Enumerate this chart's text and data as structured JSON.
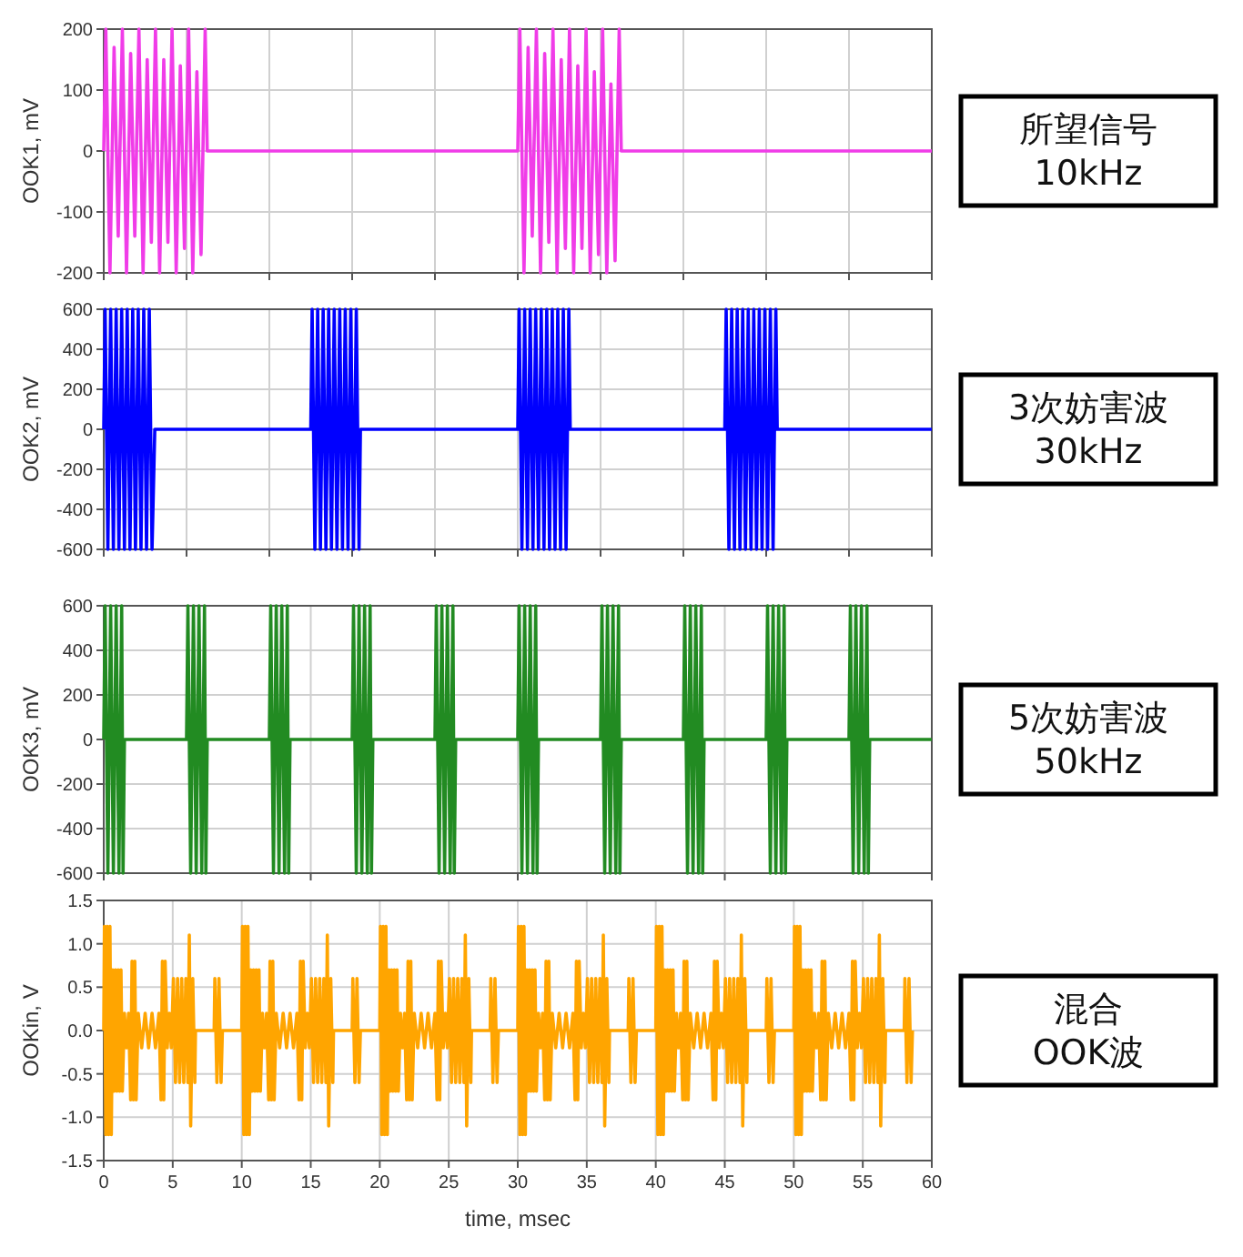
{
  "chart_data": [
    {
      "type": "line",
      "ylabel": "OOK1, mV",
      "annotations": [
        "所望信号",
        "10kHz"
      ],
      "xlim": [
        0,
        60
      ],
      "ylim": [
        -200,
        200
      ],
      "xticks": [
        {
          "value": 0,
          "label": null
        },
        {
          "value": 6,
          "label": null
        },
        {
          "value": 12,
          "label": null
        },
        {
          "value": 18,
          "label": null
        },
        {
          "value": 24,
          "label": null
        },
        {
          "value": 30,
          "label": null
        },
        {
          "value": 36,
          "label": null
        },
        {
          "value": 42,
          "label": null
        },
        {
          "value": 48,
          "label": null
        },
        {
          "value": 54,
          "label": null
        },
        {
          "value": 60,
          "label": null
        }
      ],
      "yticks": [
        -200,
        -100,
        0,
        100,
        200
      ],
      "grid": true,
      "tick_labels": "y",
      "series": [
        {
          "color": "#f03ce8",
          "x": [
            0,
            0.15,
            0.45,
            0.75,
            1.05,
            1.35,
            1.65,
            1.95,
            2.25,
            2.55,
            2.85,
            3.15,
            3.45,
            3.75,
            4.05,
            4.35,
            4.65,
            4.95,
            5.25,
            5.55,
            5.85,
            6.15,
            6.45,
            6.75,
            7.05,
            7.35,
            7.5,
            30,
            30.15,
            30.45,
            30.75,
            31.05,
            31.35,
            31.65,
            31.95,
            32.25,
            32.55,
            32.85,
            33.15,
            33.45,
            33.75,
            34.05,
            34.35,
            34.65,
            34.95,
            35.25,
            35.55,
            35.85,
            36.15,
            36.45,
            36.75,
            37.05,
            37.35,
            37.5,
            60
          ],
          "values": [
            0,
            200,
            -200,
            170,
            -140,
            200,
            -200,
            160,
            -140,
            200,
            -200,
            150,
            -150,
            200,
            -200,
            150,
            -150,
            200,
            -200,
            140,
            -160,
            200,
            -200,
            130,
            -170,
            200,
            0,
            0,
            200,
            -200,
            170,
            -140,
            200,
            -200,
            160,
            -150,
            200,
            -200,
            150,
            -160,
            200,
            -200,
            140,
            -160,
            200,
            -200,
            130,
            -170,
            200,
            -200,
            110,
            -180,
            200,
            0,
            0
          ]
        }
      ]
    },
    {
      "type": "line",
      "ylabel": "OOK2, mV",
      "annotations": [
        "3次妨害波",
        "30kHz"
      ],
      "xlim": [
        0,
        60
      ],
      "ylim": [
        -600,
        600
      ],
      "xticks": [
        {
          "value": 0,
          "label": null
        },
        {
          "value": 6,
          "label": null
        },
        {
          "value": 12,
          "label": null
        },
        {
          "value": 18,
          "label": null
        },
        {
          "value": 24,
          "label": null
        },
        {
          "value": 30,
          "label": null
        },
        {
          "value": 36,
          "label": null
        },
        {
          "value": 42,
          "label": null
        },
        {
          "value": 48,
          "label": null
        },
        {
          "value": 54,
          "label": null
        },
        {
          "value": 60,
          "label": null
        }
      ],
      "yticks": [
        -600,
        -400,
        -200,
        0,
        200,
        400,
        600
      ],
      "grid": true,
      "tick_labels": "y",
      "series": [
        {
          "color": "#0000ff",
          "x": [
            0,
            0.1,
            0.3,
            0.5,
            0.7,
            0.9,
            1.1,
            1.3,
            1.5,
            1.7,
            1.9,
            2.1,
            2.3,
            2.5,
            2.7,
            2.9,
            3.1,
            3.3,
            3.5,
            3.7,
            15,
            15.1,
            15.3,
            15.5,
            15.7,
            15.9,
            16.1,
            16.3,
            16.5,
            16.7,
            16.9,
            17.1,
            17.3,
            17.5,
            17.7,
            17.9,
            18.1,
            18.3,
            18.5,
            18.6,
            30,
            30.1,
            30.3,
            30.5,
            30.7,
            30.9,
            31.1,
            31.3,
            31.5,
            31.7,
            31.9,
            32.1,
            32.3,
            32.5,
            32.7,
            32.9,
            33.1,
            33.3,
            33.5,
            33.7,
            33.8,
            45,
            45.1,
            45.3,
            45.5,
            45.7,
            45.9,
            46.1,
            46.3,
            46.5,
            46.7,
            46.9,
            47.1,
            47.3,
            47.5,
            47.7,
            47.9,
            48.1,
            48.3,
            48.5,
            48.7,
            48.8,
            60
          ],
          "values": [
            0,
            600,
            -600,
            600,
            -600,
            600,
            -600,
            600,
            -600,
            600,
            -600,
            600,
            -600,
            600,
            -600,
            600,
            -600,
            600,
            -600,
            0,
            0,
            600,
            -600,
            600,
            -600,
            600,
            -600,
            600,
            -600,
            600,
            -600,
            600,
            -600,
            600,
            -600,
            600,
            -600,
            600,
            -600,
            0,
            0,
            600,
            -600,
            600,
            -600,
            600,
            -600,
            600,
            -600,
            600,
            -600,
            600,
            -600,
            600,
            -600,
            600,
            -600,
            600,
            -600,
            600,
            0,
            0,
            600,
            -600,
            600,
            -600,
            600,
            -600,
            600,
            -600,
            600,
            -600,
            600,
            -600,
            600,
            -600,
            600,
            -600,
            600,
            -600,
            600,
            0,
            0
          ]
        }
      ]
    },
    {
      "type": "line",
      "ylabel": "OOK3, mV",
      "annotations": [
        "5次妨害波",
        "50kHz"
      ],
      "xlim": [
        0,
        60
      ],
      "ylim": [
        -600,
        600
      ],
      "xticks": [
        {
          "value": 0,
          "label": null
        },
        {
          "value": 15,
          "label": null
        },
        {
          "value": 30,
          "label": null
        },
        {
          "value": 45,
          "label": null
        },
        {
          "value": 60,
          "label": null
        }
      ],
      "yticks": [
        -600,
        -400,
        -200,
        0,
        200,
        400,
        600
      ],
      "grid": true,
      "tick_labels": "y",
      "series": [
        {
          "color": "#228b22",
          "x": [
            0,
            0.1,
            0.3,
            0.5,
            0.7,
            0.9,
            1.1,
            1.3,
            1.4,
            1.5,
            6,
            6.1,
            6.3,
            6.5,
            6.7,
            6.9,
            7.1,
            7.3,
            7.4,
            7.5,
            12,
            12.1,
            12.3,
            12.5,
            12.7,
            12.9,
            13.1,
            13.3,
            13.4,
            13.5,
            18,
            18.1,
            18.3,
            18.5,
            18.7,
            18.9,
            19.1,
            19.3,
            19.4,
            19.5,
            24,
            24.1,
            24.3,
            24.5,
            24.7,
            24.9,
            25.1,
            25.3,
            25.4,
            25.5,
            30,
            30.1,
            30.3,
            30.5,
            30.7,
            30.9,
            31.1,
            31.3,
            31.4,
            31.5,
            36,
            36.1,
            36.3,
            36.5,
            36.7,
            36.9,
            37.1,
            37.3,
            37.4,
            37.5,
            42,
            42.1,
            42.3,
            42.5,
            42.7,
            42.9,
            43.1,
            43.3,
            43.4,
            43.5,
            48,
            48.1,
            48.3,
            48.5,
            48.7,
            48.9,
            49.1,
            49.3,
            49.4,
            49.5,
            54,
            54.1,
            54.3,
            54.5,
            54.7,
            54.9,
            55.1,
            55.3,
            55.4,
            55.5,
            60
          ],
          "values": [
            0,
            600,
            -600,
            600,
            -600,
            600,
            -600,
            600,
            -600,
            0,
            0,
            600,
            -600,
            600,
            -600,
            600,
            -600,
            600,
            -600,
            0,
            0,
            600,
            -600,
            600,
            -600,
            600,
            -600,
            600,
            -600,
            0,
            0,
            600,
            -600,
            600,
            -600,
            600,
            -600,
            600,
            -600,
            0,
            0,
            600,
            -600,
            600,
            -600,
            600,
            -600,
            600,
            -600,
            0,
            0,
            600,
            -600,
            600,
            -600,
            600,
            -600,
            600,
            -600,
            0,
            0,
            600,
            -600,
            600,
            -600,
            600,
            -600,
            600,
            -600,
            0,
            0,
            600,
            -600,
            600,
            -600,
            600,
            -600,
            600,
            -600,
            0,
            0,
            600,
            -600,
            600,
            -600,
            600,
            -600,
            600,
            -600,
            0,
            0,
            600,
            -600,
            600,
            -600,
            600,
            -600,
            600,
            -600,
            0,
            0
          ]
        }
      ]
    },
    {
      "type": "line",
      "ylabel": "OOKin, V",
      "xlabel": "time, msec",
      "annotations": [
        "混合",
        "OOK波"
      ],
      "xlim": [
        0,
        60
      ],
      "ylim": [
        -1.5,
        1.5
      ],
      "xticks": [
        0,
        5,
        10,
        15,
        20,
        25,
        30,
        35,
        40,
        45,
        50,
        55,
        60
      ],
      "yticks": [
        {
          "value": -1.5,
          "label": "-1.5"
        },
        {
          "value": -1,
          "label": "-1.0"
        },
        {
          "value": -0.5,
          "label": "-0.5"
        },
        {
          "value": 0,
          "label": "0.0"
        },
        {
          "value": 0.5,
          "label": "0.5"
        },
        {
          "value": 1,
          "label": "1.0"
        },
        {
          "value": 1.5,
          "label": "1.5"
        }
      ],
      "grid": true,
      "series": [
        {
          "color": "#ffa500",
          "x": [
            0,
            0.05,
            0.15,
            0.25,
            0.35,
            0.45,
            0.55,
            0.65,
            0.75,
            0.85,
            0.95,
            1.05,
            1.15,
            1.25,
            1.35,
            1.5,
            1.65,
            1.8,
            1.95,
            2.05,
            2.15,
            2.25,
            2.35,
            2.5,
            2.75,
            3,
            3.25,
            3.5,
            3.75,
            4,
            4.15,
            4.25,
            4.35,
            4.45,
            4.6,
            4.75,
            4.9,
            5.05,
            5.2,
            5.35,
            5.5,
            5.65,
            5.8,
            5.95,
            6.1,
            6.2,
            6.3,
            6.45,
            6.6,
            6.65,
            8,
            8.05,
            8.2,
            8.35,
            8.5,
            8.6,
            10,
            10.05,
            10.15,
            10.25,
            10.35,
            10.45,
            10.55,
            10.65,
            10.75,
            10.85,
            10.95,
            11.05,
            11.15,
            11.25,
            11.35,
            11.5,
            11.65,
            11.8,
            11.95,
            12.05,
            12.15,
            12.25,
            12.35,
            12.5,
            12.75,
            13,
            13.25,
            13.5,
            13.75,
            14,
            14.15,
            14.25,
            14.35,
            14.45,
            14.6,
            14.75,
            14.9,
            15.05,
            15.2,
            15.35,
            15.5,
            15.65,
            15.8,
            15.95,
            16.1,
            16.2,
            16.3,
            16.45,
            16.6,
            16.65,
            18,
            18.05,
            18.2,
            18.35,
            18.5,
            18.6,
            20,
            20.05,
            20.15,
            20.25,
            20.35,
            20.45,
            20.55,
            20.65,
            20.75,
            20.85,
            20.95,
            21.05,
            21.15,
            21.25,
            21.35,
            21.5,
            21.65,
            21.8,
            21.95,
            22.05,
            22.15,
            22.25,
            22.35,
            22.5,
            22.75,
            23,
            23.25,
            23.5,
            23.75,
            24,
            24.15,
            24.25,
            24.35,
            24.45,
            24.6,
            24.75,
            24.9,
            25.05,
            25.2,
            25.35,
            25.5,
            25.65,
            25.8,
            25.95,
            26.1,
            26.2,
            26.3,
            26.45,
            26.6,
            26.65,
            28,
            28.05,
            28.2,
            28.35,
            28.5,
            28.6,
            30,
            30.05,
            30.15,
            30.25,
            30.35,
            30.45,
            30.55,
            30.65,
            30.75,
            30.85,
            30.95,
            31.05,
            31.15,
            31.25,
            31.35,
            31.5,
            31.65,
            31.8,
            31.95,
            32.05,
            32.15,
            32.25,
            32.35,
            32.5,
            32.75,
            33,
            33.25,
            33.5,
            33.75,
            34,
            34.15,
            34.25,
            34.35,
            34.45,
            34.6,
            34.75,
            34.9,
            35.05,
            35.2,
            35.35,
            35.5,
            35.65,
            35.8,
            35.95,
            36.1,
            36.2,
            36.3,
            36.45,
            36.6,
            36.65,
            38,
            38.05,
            38.2,
            38.35,
            38.5,
            38.6,
            40,
            40.05,
            40.15,
            40.25,
            40.35,
            40.45,
            40.55,
            40.65,
            40.75,
            40.85,
            40.95,
            41.05,
            41.15,
            41.25,
            41.35,
            41.5,
            41.65,
            41.8,
            41.95,
            42.05,
            42.15,
            42.25,
            42.35,
            42.5,
            42.75,
            43,
            43.25,
            43.5,
            43.75,
            44,
            44.15,
            44.25,
            44.35,
            44.45,
            44.6,
            44.75,
            44.9,
            45.05,
            45.2,
            45.35,
            45.5,
            45.65,
            45.8,
            45.95,
            46.1,
            46.2,
            46.3,
            46.45,
            46.6,
            46.65,
            48,
            48.05,
            48.2,
            48.35,
            48.5,
            48.6,
            50,
            50.05,
            50.15,
            50.25,
            50.35,
            50.45,
            50.55,
            50.65,
            50.75,
            50.85,
            50.95,
            51.05,
            51.15,
            51.25,
            51.35,
            51.5,
            51.65,
            51.8,
            51.95,
            52.05,
            52.15,
            52.25,
            52.35,
            52.5,
            52.75,
            53,
            53.25,
            53.5,
            53.75,
            54,
            54.15,
            54.25,
            54.35,
            54.45,
            54.6,
            54.75,
            54.9,
            55.05,
            55.2,
            55.35,
            55.5,
            55.65,
            55.8,
            55.95,
            56.1,
            56.2,
            56.3,
            56.45,
            56.6,
            56.65,
            58,
            58.05,
            58.2,
            58.35,
            58.5,
            58.6
          ],
          "values": [
            0,
            1.2,
            -1.2,
            1.2,
            -1.2,
            1.2,
            -1.2,
            0.7,
            -0.7,
            0.7,
            -0.7,
            0.7,
            -0.7,
            0.7,
            -0.7,
            0.2,
            -0.2,
            0.2,
            -0.8,
            0.8,
            -0.8,
            0.8,
            -0.8,
            0.2,
            -0.2,
            0.2,
            -0.2,
            0.2,
            -0.2,
            0.2,
            -0.8,
            0.8,
            -0.8,
            0.8,
            -0.2,
            0.2,
            -0.2,
            0.6,
            -0.6,
            0.6,
            -0.6,
            0.6,
            -0.6,
            0.6,
            -0.6,
            1.1,
            -1.1,
            0.6,
            -0.6,
            0,
            0,
            0.6,
            -0.6,
            0.6,
            -0.6,
            0,
            0,
            1.2,
            -1.2,
            1.2,
            -1.2,
            1.2,
            -1.2,
            0.7,
            -0.7,
            0.7,
            -0.7,
            0.7,
            -0.7,
            0.7,
            -0.7,
            0.2,
            -0.2,
            0.2,
            -0.8,
            0.8,
            -0.8,
            0.8,
            -0.8,
            0.2,
            -0.2,
            0.2,
            -0.2,
            0.2,
            -0.2,
            0.2,
            -0.8,
            0.8,
            -0.8,
            0.8,
            -0.2,
            0.2,
            -0.2,
            0.6,
            -0.6,
            0.6,
            -0.6,
            0.6,
            -0.6,
            0.6,
            -0.6,
            1.1,
            -1.1,
            0.6,
            -0.6,
            0,
            0,
            0.6,
            -0.6,
            0.6,
            -0.6,
            0,
            0,
            1.2,
            -1.2,
            1.2,
            -1.2,
            1.2,
            -1.2,
            0.7,
            -0.7,
            0.7,
            -0.7,
            0.7,
            -0.7,
            0.7,
            -0.7,
            0.2,
            -0.2,
            0.2,
            -0.8,
            0.8,
            -0.8,
            0.8,
            -0.8,
            0.2,
            -0.2,
            0.2,
            -0.2,
            0.2,
            -0.2,
            0.2,
            -0.8,
            0.8,
            -0.8,
            0.8,
            -0.2,
            0.2,
            -0.2,
            0.6,
            -0.6,
            0.6,
            -0.6,
            0.6,
            -0.6,
            0.6,
            -0.6,
            1.1,
            -1.1,
            0.6,
            -0.6,
            0,
            0,
            0.6,
            -0.6,
            0.6,
            -0.6,
            0,
            0,
            1.2,
            -1.2,
            1.2,
            -1.2,
            1.2,
            -1.2,
            0.7,
            -0.7,
            0.7,
            -0.7,
            0.7,
            -0.7,
            0.7,
            -0.7,
            0.2,
            -0.2,
            0.2,
            -0.8,
            0.8,
            -0.8,
            0.8,
            -0.8,
            0.2,
            -0.2,
            0.2,
            -0.2,
            0.2,
            -0.2,
            0.2,
            -0.8,
            0.8,
            -0.8,
            0.8,
            -0.2,
            0.2,
            -0.2,
            0.6,
            -0.6,
            0.6,
            -0.6,
            0.6,
            -0.6,
            0.6,
            -0.6,
            1.1,
            -1.1,
            0.6,
            -0.6,
            0,
            0,
            0.6,
            -0.6,
            0.6,
            -0.6,
            0,
            0,
            1.2,
            -1.2,
            1.2,
            -1.2,
            1.2,
            -1.2,
            0.7,
            -0.7,
            0.7,
            -0.7,
            0.7,
            -0.7,
            0.7,
            -0.7,
            0.2,
            -0.2,
            0.2,
            -0.8,
            0.8,
            -0.8,
            0.8,
            -0.8,
            0.2,
            -0.2,
            0.2,
            -0.2,
            0.2,
            -0.2,
            0.2,
            -0.8,
            0.8,
            -0.8,
            0.8,
            -0.2,
            0.2,
            -0.2,
            0.6,
            -0.6,
            0.6,
            -0.6,
            0.6,
            -0.6,
            0.6,
            -0.6,
            1.1,
            -1.1,
            0.6,
            -0.6,
            0,
            0,
            0.6,
            -0.6,
            0.6,
            -0.6,
            0,
            0,
            1.2,
            -1.2,
            1.2,
            -1.2,
            1.2,
            -1.2,
            0.7,
            -0.7,
            0.7,
            -0.7,
            0.7,
            -0.7,
            0.7,
            -0.7,
            0.2,
            -0.2,
            0.2,
            -0.8,
            0.8,
            -0.8,
            0.8,
            -0.8,
            0.2,
            -0.2,
            0.2,
            -0.2,
            0.2,
            -0.2,
            0.2,
            -0.8,
            0.8,
            -0.8,
            0.8,
            -0.2,
            0.2,
            -0.2,
            0.6,
            -0.6,
            0.6,
            -0.6,
            0.6,
            -0.6,
            0.6,
            -0.6,
            1.1,
            -1.1,
            0.6,
            -0.6,
            0,
            0,
            0.6,
            -0.6,
            0.6,
            -0.6,
            0
          ]
        }
      ]
    }
  ]
}
